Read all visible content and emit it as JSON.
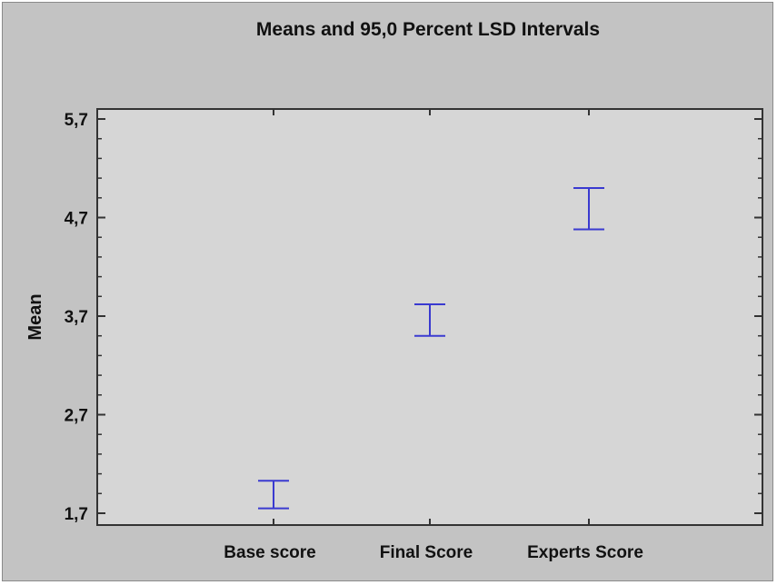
{
  "chart_data": {
    "type": "errorbar",
    "title": "Means and 95,0 Percent LSD Intervals",
    "xlabel": "",
    "ylabel": "Mean",
    "ylim": [
      1.7,
      5.7
    ],
    "yticks": [
      "1,7",
      "2,7",
      "3,7",
      "4,7",
      "5,7"
    ],
    "ytick_values": [
      1.7,
      2.7,
      3.7,
      4.7,
      5.7
    ],
    "categories": [
      "Base score",
      "Final Score",
      "Experts Score"
    ],
    "series": [
      {
        "low": [
          1.75,
          3.5,
          4.58
        ],
        "high": [
          2.03,
          3.82,
          5.0
        ]
      }
    ],
    "grid": false,
    "colors": {
      "interval": "#3a3ad0",
      "plot_bg": "#d6d6d6",
      "frame_bg": "#c3c3c3"
    }
  }
}
